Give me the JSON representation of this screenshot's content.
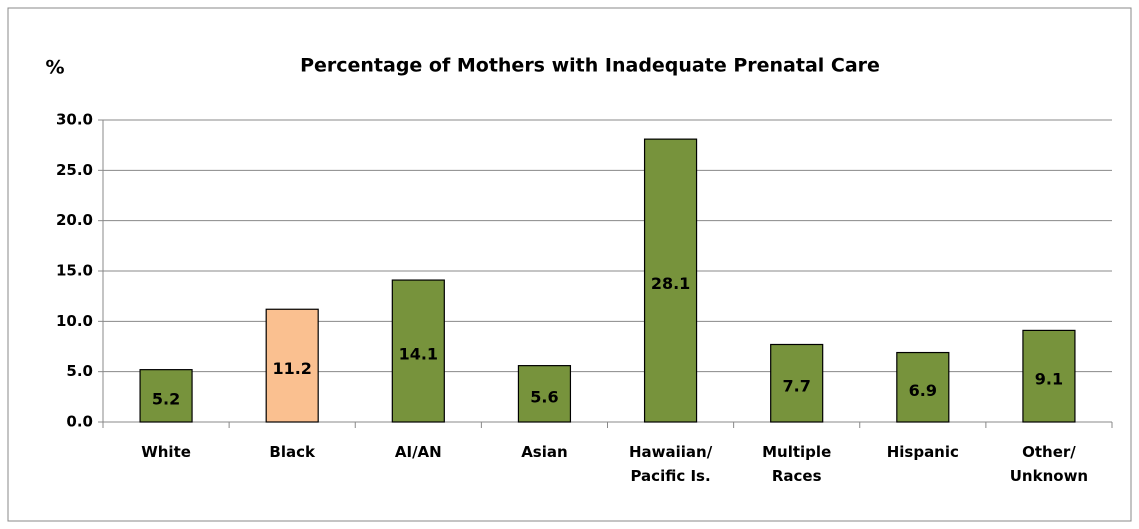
{
  "chart_data": {
    "type": "bar",
    "title": "Percentage of Mothers with Inadequate Prenatal Care",
    "y_label": "%",
    "categories": [
      "White",
      "Black",
      "AI/AN",
      "Asian",
      "Hawaiian/ Pacific Is.",
      "Multiple Races",
      "Hispanic",
      "Other/ Unknown"
    ],
    "values": [
      5.2,
      11.2,
      14.1,
      5.6,
      28.1,
      7.7,
      6.9,
      9.1
    ],
    "colors": [
      "#77933c",
      "#fac090",
      "#77933c",
      "#77933c",
      "#77933c",
      "#77933c",
      "#77933c",
      "#77933c"
    ],
    "ylim": [
      0,
      30
    ],
    "yticks": [
      {
        "value": 0,
        "label": "0.0"
      },
      {
        "value": 5,
        "label": "5.0"
      },
      {
        "value": 10,
        "label": "10.0"
      },
      {
        "value": 15,
        "label": "15.0"
      },
      {
        "value": 20,
        "label": "20.0"
      },
      {
        "value": 25,
        "label": "25.0"
      },
      {
        "value": 30,
        "label": "30.0"
      }
    ],
    "grid": true
  }
}
